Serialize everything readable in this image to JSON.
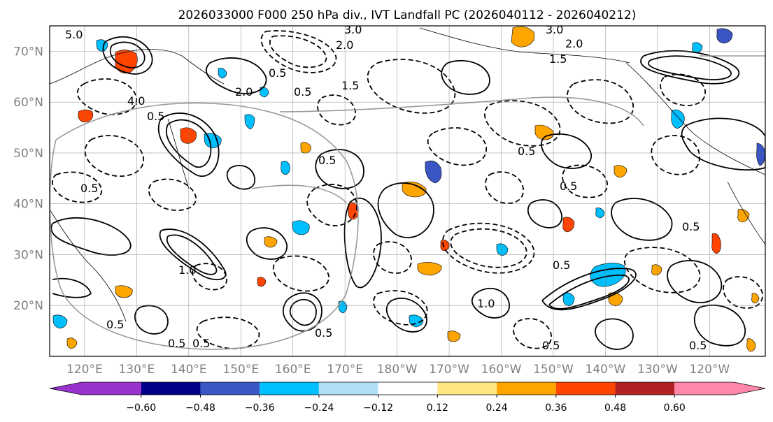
{
  "chart_data": {
    "type": "map",
    "title": "2026033000 F000 250 hPa div., IVT Landfall PC (2026040112 - 2026040212)",
    "x_ticks": [
      "120°E",
      "130°E",
      "140°E",
      "150°E",
      "160°E",
      "170°E",
      "180°W",
      "170°W",
      "160°W",
      "150°W",
      "140°W",
      "130°W",
      "120°W"
    ],
    "y_ticks": [
      "70°N",
      "60°N",
      "50°N",
      "40°N",
      "30°N",
      "20°N"
    ],
    "lon_values": [
      120,
      130,
      140,
      150,
      160,
      170,
      180,
      190,
      200,
      210,
      220,
      230,
      240
    ],
    "lat_values": [
      70,
      60,
      50,
      40,
      30,
      20
    ],
    "lon_range": [
      113.3,
      250.7
    ],
    "lat_range": [
      10,
      75
    ],
    "grid": true,
    "colorbar": {
      "orientation": "horizontal",
      "extend": "both",
      "levels": [
        -0.6,
        -0.48,
        -0.36,
        -0.24,
        -0.12,
        0.12,
        0.24,
        0.36,
        0.48,
        0.6
      ],
      "tick_labels": [
        "−0.60",
        "−0.48",
        "−0.36",
        "−0.24",
        "−0.12",
        "0.12",
        "0.24",
        "0.36",
        "0.48",
        "0.60"
      ],
      "colors": [
        "#9932cc",
        "#00008b",
        "#3a56c4",
        "#00bfff",
        "#b0e0f8",
        "#ffffff",
        "#ffe680",
        "#ffa500",
        "#ff4500",
        "#b22222",
        "#ff88aa"
      ]
    },
    "contour_labels": [
      "5.0",
      "3.0",
      "3.0",
      "2.0",
      "2.0",
      "1.5",
      "0.5",
      "2.0",
      "0.5",
      "1.5",
      "4.0",
      "0.5",
      "0.5",
      "0.5",
      "0.5",
      "0.5",
      "1.0",
      "0.5",
      "0.5",
      "1.0",
      "0.5",
      "0.5",
      "0.5",
      "0.5",
      "0.5",
      "0.5"
    ]
  }
}
